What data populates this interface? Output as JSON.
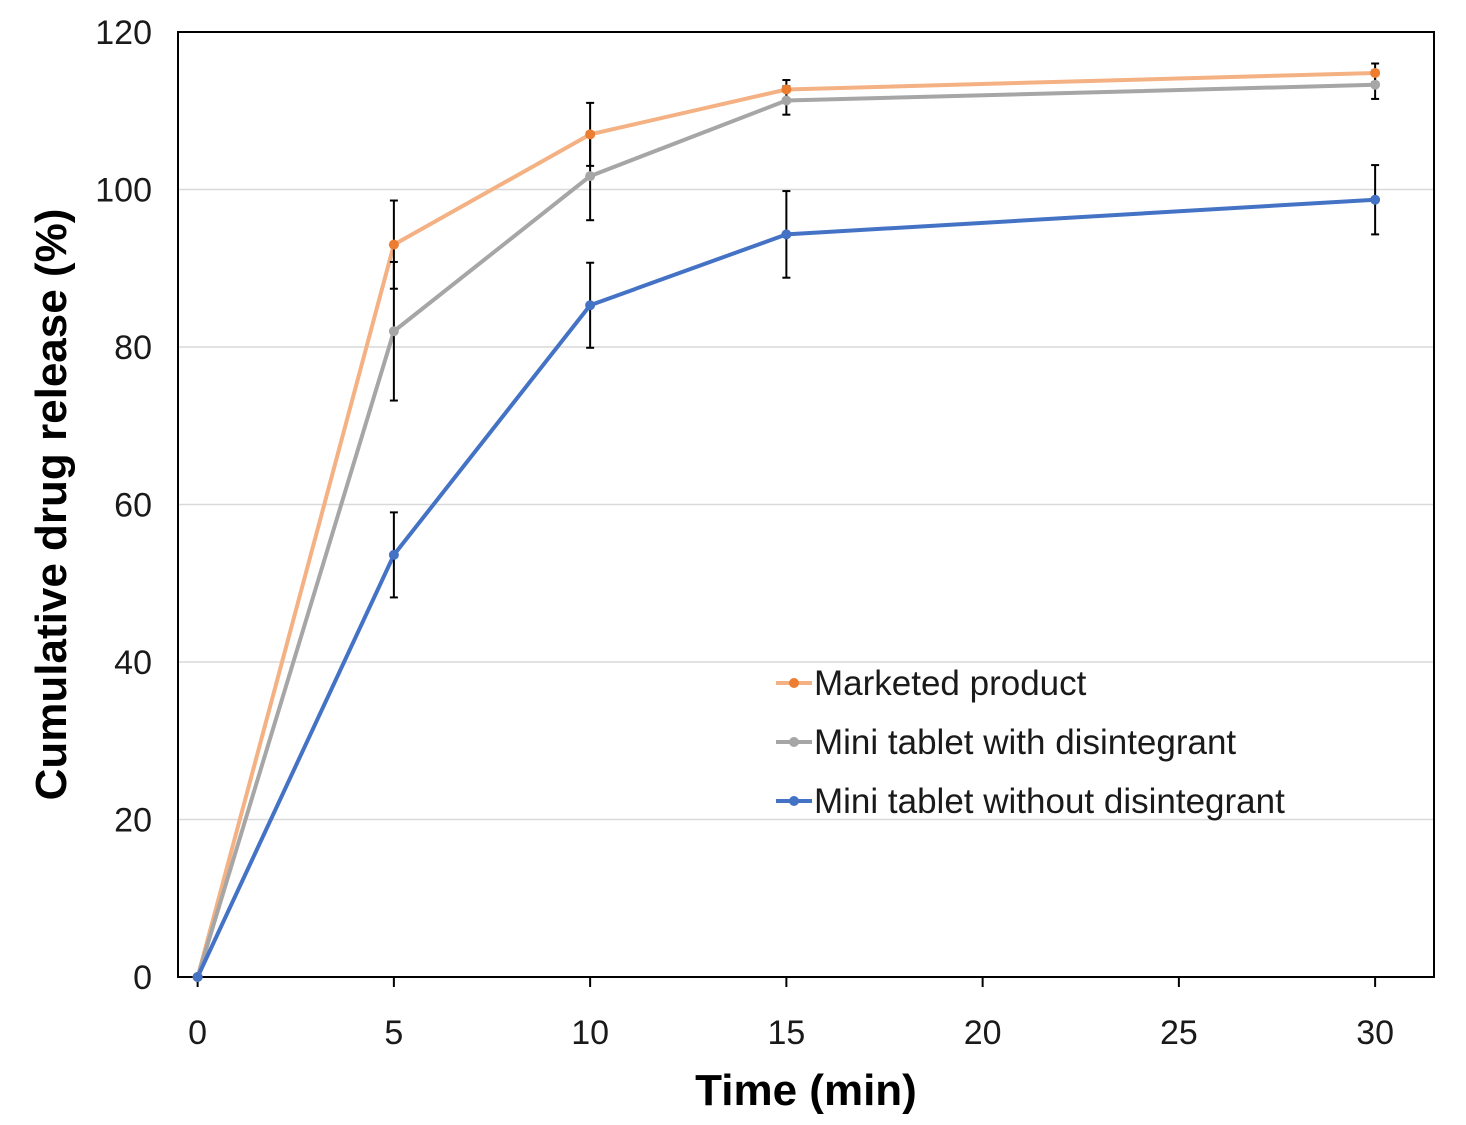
{
  "chart_data": {
    "type": "line",
    "title": "",
    "xlabel": "Time (min)",
    "ylabel": "Cumulative drug release (%)",
    "xlim": [
      -0.5,
      31.5
    ],
    "ylim": [
      0,
      120
    ],
    "xticks": [
      "0",
      "5",
      "10",
      "15",
      "20",
      "25",
      "30"
    ],
    "yticks": [
      "0",
      "20",
      "40",
      "60",
      "80",
      "100",
      "120"
    ],
    "grid": "horizontal",
    "legend_position": "lower-right",
    "x": [
      0,
      5,
      10,
      15,
      30
    ],
    "series": [
      {
        "name": "Marketed product",
        "line_color": "#f4b183",
        "marker_color": "#ed7d31",
        "values": [
          0,
          93.0,
          107.0,
          112.7,
          114.8
        ],
        "error": [
          0,
          5.6,
          4.0,
          1.2,
          1.2
        ]
      },
      {
        "name": "Mini tablet with disintegrant",
        "line_color": "#a6a6a6",
        "marker_color": "#a6a6a6",
        "values": [
          0,
          82.0,
          101.7,
          111.3,
          113.3
        ],
        "error": [
          0,
          8.8,
          5.6,
          1.8,
          1.8
        ]
      },
      {
        "name": "Mini tablet without disintegrant",
        "line_color": "#4472c4",
        "marker_color": "#4472c4",
        "values": [
          0,
          53.6,
          85.3,
          94.3,
          98.7
        ],
        "error": [
          0,
          5.4,
          5.4,
          5.5,
          4.4
        ]
      }
    ]
  }
}
